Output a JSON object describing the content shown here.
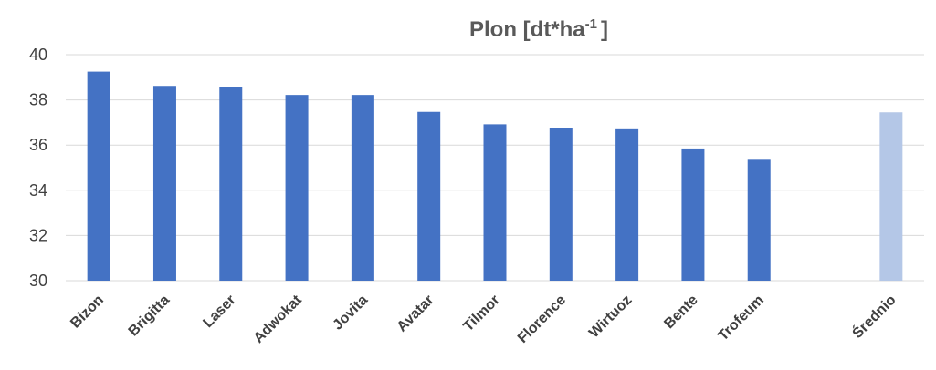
{
  "chart_data": {
    "type": "bar",
    "title": "Plon [dt*ha",
    "title_sup": "-1",
    "title_end": "]",
    "xlabel": "",
    "ylabel": "",
    "categories": [
      "Bizon",
      "Brigitta",
      "Laser",
      "Adwokat",
      "Jovita",
      "Avatar",
      "Tilmor",
      "Florence",
      "Wirtuoz",
      "Bente",
      "Trofeum",
      "",
      "Średnio"
    ],
    "values": [
      39.25,
      38.62,
      38.57,
      38.22,
      38.22,
      37.47,
      36.92,
      36.75,
      36.7,
      35.85,
      35.35,
      null,
      37.45
    ],
    "bar_colors": [
      "#4472c4",
      "#4472c4",
      "#4472c4",
      "#4472c4",
      "#4472c4",
      "#4472c4",
      "#4472c4",
      "#4472c4",
      "#4472c4",
      "#4472c4",
      "#4472c4",
      "#4472c4",
      "#b4c7e7"
    ],
    "ylim": [
      30,
      40
    ],
    "yticks": [
      30,
      32,
      34,
      36,
      38,
      40
    ],
    "grid": true,
    "legend": "none"
  }
}
